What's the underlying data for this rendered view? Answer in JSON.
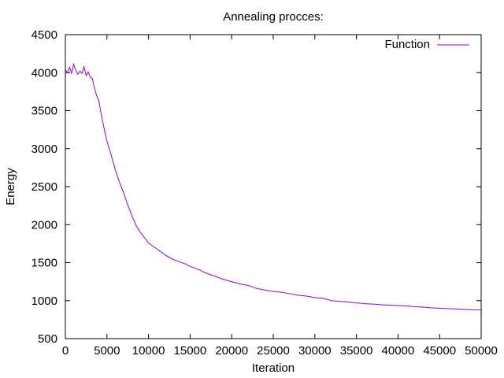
{
  "chart_data": {
    "type": "line",
    "title": "Annealing procces:",
    "xlabel": "Iteration",
    "ylabel": "Energy",
    "xlim": [
      0,
      50000
    ],
    "ylim": [
      500,
      4500
    ],
    "x_ticks": [
      "0",
      "5000",
      "10000",
      "15000",
      "20000",
      "25000",
      "30000",
      "35000",
      "40000",
      "45000",
      "50000"
    ],
    "y_ticks": [
      "500",
      "1000",
      "1500",
      "2000",
      "2500",
      "3000",
      "3500",
      "4000",
      "4500"
    ],
    "grid": false,
    "legend_position": "top-right",
    "series": [
      {
        "name": "Function",
        "color": "#9400d3",
        "x": [
          0,
          250,
          500,
          750,
          1000,
          1250,
          1500,
          1750,
          2000,
          2250,
          2500,
          2750,
          3000,
          3250,
          3500,
          3750,
          4000,
          4250,
          4500,
          4750,
          5000,
          5500,
          6000,
          6500,
          7000,
          7500,
          8000,
          8500,
          9000,
          9500,
          10000,
          10500,
          11000,
          11500,
          12000,
          12500,
          13000,
          13500,
          14000,
          14500,
          15000,
          16000,
          17000,
          18000,
          19000,
          20000,
          21000,
          22000,
          23000,
          24000,
          25000,
          26000,
          27000,
          28000,
          29000,
          30000,
          31000,
          32000,
          33000,
          34000,
          35000,
          36000,
          37000,
          38000,
          39000,
          40000,
          41000,
          42000,
          43000,
          44000,
          45000,
          46000,
          47000,
          48000,
          49000,
          50000
        ],
        "y": [
          4040,
          4000,
          4070,
          3990,
          4110,
          4030,
          3980,
          4020,
          3990,
          4080,
          3960,
          4010,
          3940,
          3920,
          3800,
          3700,
          3640,
          3490,
          3350,
          3220,
          3100,
          2920,
          2720,
          2560,
          2420,
          2260,
          2120,
          1990,
          1900,
          1830,
          1760,
          1720,
          1680,
          1640,
          1600,
          1570,
          1540,
          1520,
          1500,
          1480,
          1450,
          1410,
          1360,
          1320,
          1280,
          1250,
          1220,
          1200,
          1160,
          1140,
          1120,
          1110,
          1090,
          1070,
          1060,
          1040,
          1030,
          1000,
          990,
          980,
          970,
          960,
          955,
          945,
          940,
          935,
          930,
          920,
          915,
          905,
          900,
          895,
          890,
          885,
          880,
          878
        ]
      }
    ]
  }
}
